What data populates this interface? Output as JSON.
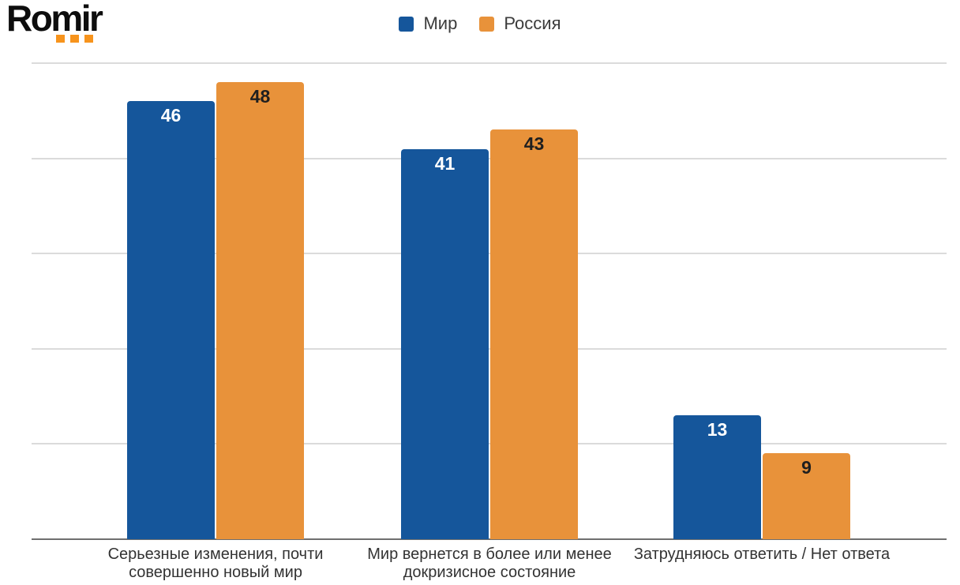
{
  "brand": {
    "logo_text": "Romir",
    "dot_color": "#f7941d"
  },
  "legend": {
    "position": "top-center",
    "items": [
      {
        "label": "Мир",
        "color": "#15569b"
      },
      {
        "label": "Россия",
        "color": "#e8923a"
      }
    ]
  },
  "chart_data": {
    "type": "bar",
    "categories": [
      "Серьезные изменения, почти совершенно новый мир",
      "Мир вернется в более или менее докризисное состояние",
      "Затрудняюсь ответить / Нет ответа"
    ],
    "series": [
      {
        "name": "Мир",
        "color": "#15569b",
        "values": [
          46,
          41,
          13
        ],
        "value_label_color": "#ffffff"
      },
      {
        "name": "Россия",
        "color": "#e8923a",
        "values": [
          48,
          43,
          9
        ],
        "value_label_color": "#1f1f1f"
      }
    ],
    "title": "",
    "xlabel": "",
    "ylabel": "",
    "ylim": [
      0,
      50
    ],
    "yticks": [
      0,
      10,
      20,
      30,
      40,
      50
    ],
    "grid": true,
    "value_labels": "inside-top",
    "legend_position": "top-center",
    "colors": {
      "gridline": "#dbdbdb",
      "axis_line": "#6f6f6f",
      "tick_label": "#1f1f1f",
      "category_label": "#333333",
      "background": "#ffffff"
    }
  }
}
